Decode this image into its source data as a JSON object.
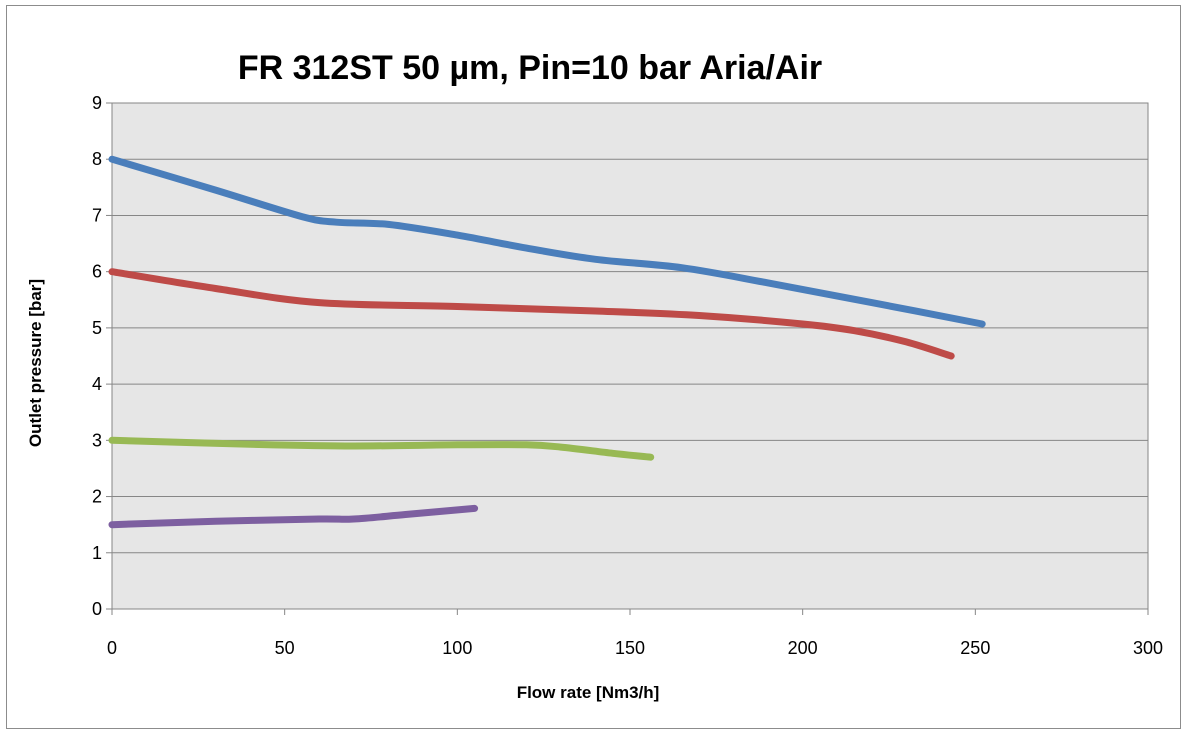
{
  "chart_data": {
    "type": "line",
    "title": "FR 312ST 50 µm, Pin=10 bar  Aria/Air",
    "xlabel": "Flow rate [Nm3/h]",
    "ylabel": "Outlet pressure [bar]",
    "xlim": [
      0,
      300
    ],
    "ylim": [
      0,
      9
    ],
    "xticks": [
      0,
      50,
      100,
      150,
      200,
      250,
      300
    ],
    "yticks": [
      0,
      1,
      2,
      3,
      4,
      5,
      6,
      7,
      8,
      9
    ],
    "grid": "horizontal",
    "legend": "none",
    "plot_background": "#e6e6e6",
    "series": [
      {
        "color": "#4a7ebb",
        "x": [
          0,
          30,
          55,
          65,
          80,
          100,
          120,
          140,
          165,
          190,
          220,
          252
        ],
        "y": [
          8.0,
          7.45,
          6.98,
          6.88,
          6.84,
          6.65,
          6.42,
          6.22,
          6.07,
          5.8,
          5.45,
          5.07
        ]
      },
      {
        "color": "#be4b48",
        "x": [
          0,
          30,
          60,
          100,
          140,
          170,
          200,
          215,
          230,
          243
        ],
        "y": [
          6.0,
          5.7,
          5.45,
          5.38,
          5.3,
          5.22,
          5.07,
          4.95,
          4.75,
          4.5
        ]
      },
      {
        "color": "#98b954",
        "x": [
          0,
          40,
          70,
          100,
          120,
          130,
          145,
          156
        ],
        "y": [
          3.0,
          2.93,
          2.9,
          2.92,
          2.92,
          2.88,
          2.77,
          2.7
        ]
      },
      {
        "color": "#7d5fa0",
        "x": [
          0,
          30,
          60,
          70,
          85,
          105
        ],
        "y": [
          1.5,
          1.56,
          1.6,
          1.6,
          1.68,
          1.79
        ]
      }
    ]
  }
}
